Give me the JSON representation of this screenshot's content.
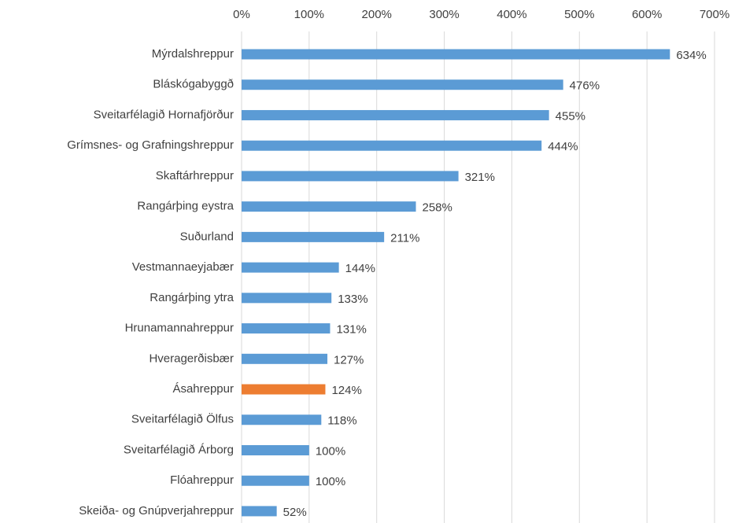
{
  "chart_data": {
    "type": "bar",
    "orientation": "horizontal",
    "categories": [
      "Mýrdalshreppur",
      "Bláskógabyggð",
      "Sveitarfélagið Hornafjörður",
      "Grímsnes- og Grafningshreppur",
      "Skaftárhreppur",
      "Rangárþing eystra",
      "Suðurland",
      "Vestmannaeyjabær",
      "Rangárþing ytra",
      "Hrunamannahreppur",
      "Hveragerðisbær",
      "Ásahreppur",
      "Sveitarfélagið Ölfus",
      "Sveitarfélagið Árborg",
      "Flóahreppur",
      "Skeiða- og Gnúpverjahreppur"
    ],
    "values": [
      634,
      476,
      455,
      444,
      321,
      258,
      211,
      144,
      133,
      131,
      127,
      124,
      118,
      100,
      100,
      52
    ],
    "value_labels": [
      "634%",
      "476%",
      "455%",
      "444%",
      "321%",
      "258%",
      "211%",
      "144%",
      "133%",
      "131%",
      "127%",
      "124%",
      "118%",
      "100%",
      "100%",
      "52%"
    ],
    "colors": [
      "#5b9bd5",
      "#5b9bd5",
      "#5b9bd5",
      "#5b9bd5",
      "#5b9bd5",
      "#5b9bd5",
      "#5b9bd5",
      "#5b9bd5",
      "#5b9bd5",
      "#5b9bd5",
      "#5b9bd5",
      "#ed7d31",
      "#5b9bd5",
      "#5b9bd5",
      "#5b9bd5",
      "#5b9bd5"
    ],
    "xlim": [
      0,
      700
    ],
    "xticks": [
      {
        "value": 0,
        "label": "0%"
      },
      {
        "value": 100,
        "label": "100%"
      },
      {
        "value": 200,
        "label": "200%"
      },
      {
        "value": 300,
        "label": "300%"
      },
      {
        "value": 400,
        "label": "400%"
      },
      {
        "value": 500,
        "label": "500%"
      },
      {
        "value": 600,
        "label": "600%"
      },
      {
        "value": 700,
        "label": "700%"
      }
    ],
    "grid": true,
    "x_axis_position": "top"
  }
}
